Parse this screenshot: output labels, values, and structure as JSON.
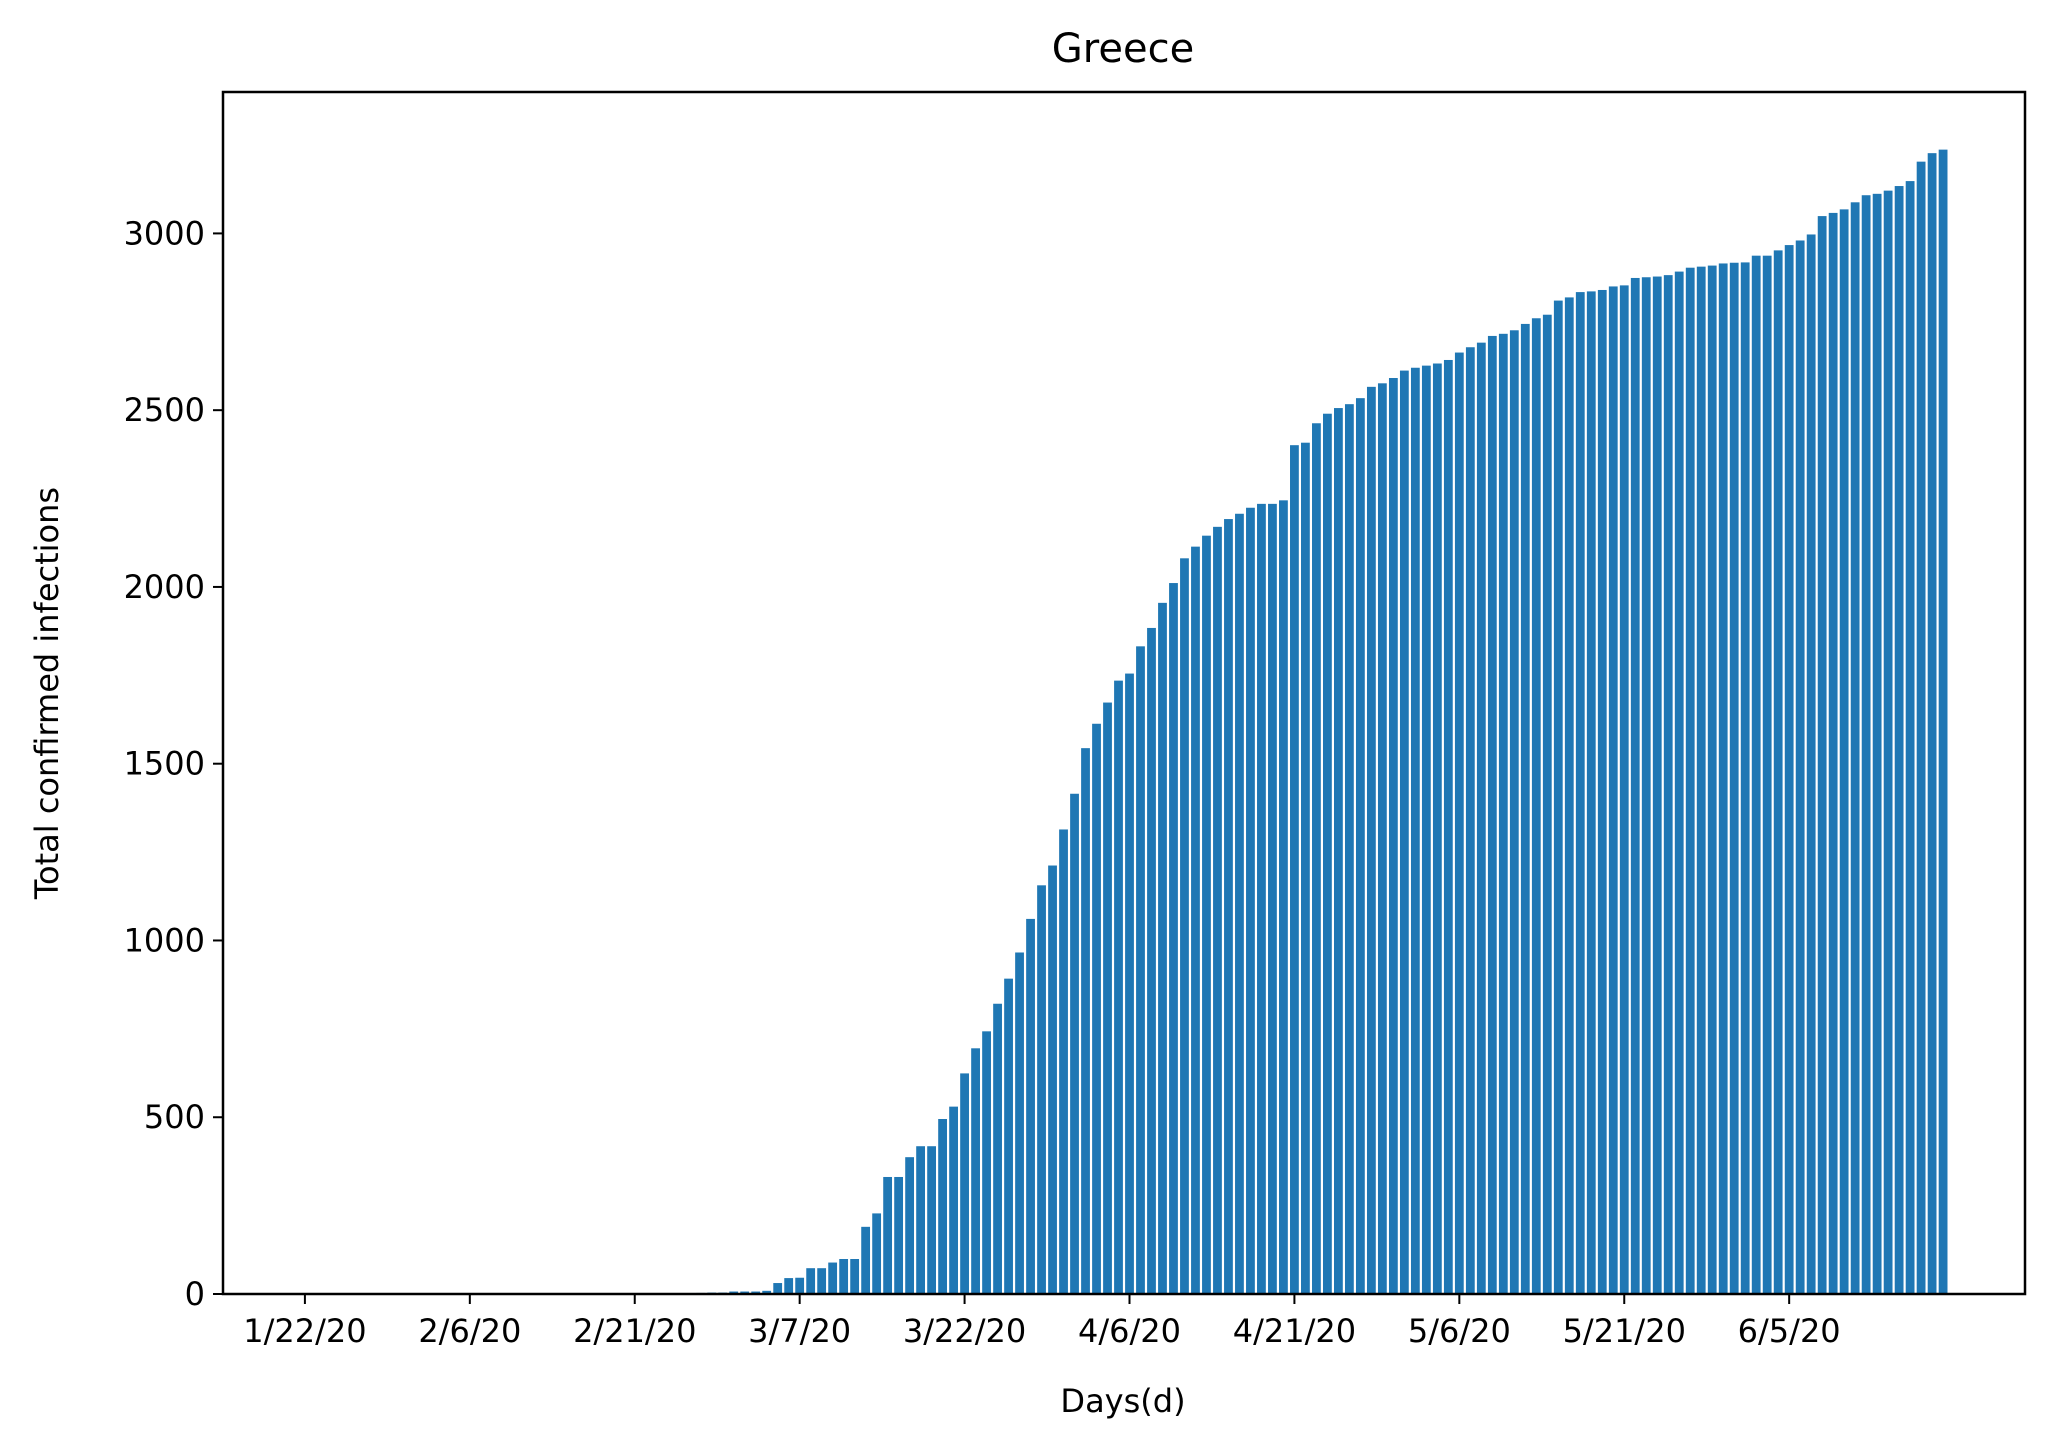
{
  "chart_data": {
    "type": "bar",
    "title": "Greece",
    "xlabel": "Days(d)",
    "ylabel": "Total confirmed infections",
    "color": "#1f77b4",
    "grid": false,
    "legend": "none",
    "x_tick_labels": [
      "1/22/20",
      "2/6/20",
      "2/21/20",
      "3/7/20",
      "3/22/20",
      "4/6/20",
      "4/21/20",
      "5/6/20",
      "5/21/20",
      "6/5/20"
    ],
    "y_tick_labels": [
      "0",
      "500",
      "1000",
      "1500",
      "2000",
      "2500",
      "3000"
    ],
    "ylim": [
      0,
      3400
    ],
    "start_date": "1/22/20",
    "end_date": "6/20/20",
    "values": [
      0,
      0,
      0,
      0,
      0,
      0,
      0,
      0,
      0,
      0,
      0,
      0,
      0,
      0,
      0,
      0,
      0,
      0,
      0,
      0,
      0,
      0,
      0,
      0,
      0,
      0,
      0,
      0,
      0,
      0,
      0,
      0,
      0,
      0,
      0,
      1,
      3,
      4,
      4,
      7,
      7,
      7,
      9,
      31,
      45,
      46,
      73,
      73,
      89,
      99,
      99,
      190,
      228,
      331,
      331,
      387,
      418,
      418,
      495,
      530,
      624,
      695,
      743,
      821,
      892,
      966,
      1061,
      1156,
      1212,
      1314,
      1415,
      1544,
      1613,
      1673,
      1735,
      1755,
      1832,
      1884,
      1955,
      2011,
      2081,
      2114,
      2145,
      2170,
      2192,
      2207,
      2224,
      2235,
      2235,
      2245,
      2401,
      2408,
      2463,
      2490,
      2506,
      2517,
      2534,
      2566,
      2576,
      2591,
      2612,
      2620,
      2626,
      2632,
      2642,
      2663,
      2678,
      2691,
      2710,
      2716,
      2726,
      2744,
      2760,
      2770,
      2810,
      2819,
      2834,
      2836,
      2840,
      2850,
      2853,
      2874,
      2876,
      2878,
      2882,
      2892,
      2903,
      2906,
      2909,
      2915,
      2917,
      2918,
      2937,
      2937,
      2952,
      2967,
      2980,
      2997,
      3049,
      3058,
      3068,
      3088,
      3108,
      3112,
      3121,
      3134,
      3148,
      3203,
      3227,
      3237
    ]
  }
}
